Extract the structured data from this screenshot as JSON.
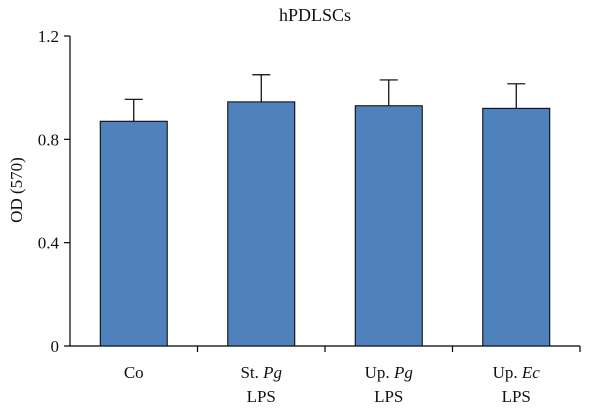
{
  "chart_data": {
    "type": "bar",
    "title": "hPDLSCs",
    "ylabel": "OD (570)",
    "xlabel": "",
    "ylim": [
      0,
      1.2
    ],
    "yticks": [
      "0",
      "0.4",
      "0.8",
      "1.2"
    ],
    "categories": [
      {
        "parts": [
          {
            "text": "Co",
            "italic": false
          }
        ]
      },
      {
        "parts": [
          {
            "text": "St. ",
            "italic": false
          },
          {
            "text": "Pg",
            "italic": true
          }
        ],
        "line2": "LPS"
      },
      {
        "parts": [
          {
            "text": "Up. ",
            "italic": false
          },
          {
            "text": "Pg",
            "italic": true
          }
        ],
        "line2": "LPS"
      },
      {
        "parts": [
          {
            "text": "Up. ",
            "italic": false
          },
          {
            "text": "Ec",
            "italic": true
          }
        ],
        "line2": "LPS"
      }
    ],
    "values": [
      0.87,
      0.945,
      0.93,
      0.92
    ],
    "errors": [
      0.085,
      0.105,
      0.1,
      0.095
    ],
    "bar_color": "#4f81bd",
    "grid": false,
    "legend": "none"
  }
}
